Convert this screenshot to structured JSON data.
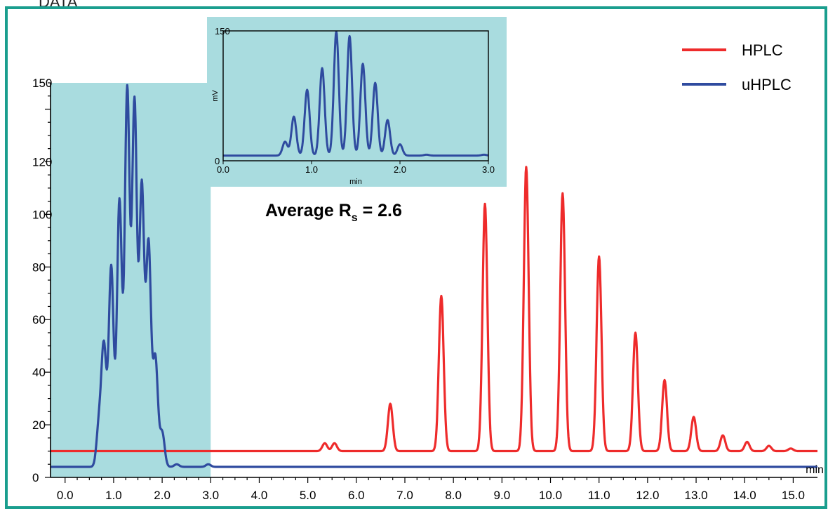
{
  "header": {
    "title": "DATA"
  },
  "colors": {
    "frame": "#1a9e8e",
    "highlight": "#a9dcdf",
    "hplc": "#ee2b2b",
    "uhplc": "#2f4b9f"
  },
  "chart_data": [
    {
      "type": "line",
      "xlabel": "min",
      "ylabel": "",
      "xlim": [
        -0.3,
        15.5
      ],
      "ylim": [
        0,
        150
      ],
      "x_ticks": [
        "0.0",
        "1.0",
        "2.0",
        "3.0",
        "4.0",
        "5.0",
        "6.0",
        "7.0",
        "8.0",
        "9.0",
        "10.0",
        "11.0",
        "12.0",
        "13.0",
        "14.0",
        "15.0"
      ],
      "y_ticks": [
        "0",
        "20",
        "40",
        "60",
        "80",
        "100",
        "120",
        "150"
      ],
      "highlight_region": [
        -0.3,
        3.0
      ],
      "legend": {
        "position": "top-right",
        "entries": [
          "HPLC",
          "uHPLC"
        ]
      },
      "annotation": {
        "prefix": "Average R",
        "subscript": "s",
        "suffix": " = 2.6"
      },
      "series": [
        {
          "name": "HPLC",
          "color": "#ee2b2b",
          "baseline": 10,
          "peaks": [
            [
              5.35,
              3
            ],
            [
              5.55,
              3
            ],
            [
              6.7,
              18
            ],
            [
              7.75,
              59
            ],
            [
              8.65,
              94
            ],
            [
              9.5,
              108
            ],
            [
              10.25,
              98
            ],
            [
              11.0,
              74
            ],
            [
              11.75,
              45
            ],
            [
              12.35,
              27
            ],
            [
              12.95,
              13
            ],
            [
              13.55,
              6
            ],
            [
              14.05,
              3.5
            ],
            [
              14.5,
              2
            ],
            [
              14.95,
              1
            ]
          ]
        },
        {
          "name": "uHPLC",
          "color": "#2f4b9f",
          "baseline": 4,
          "peaks": [
            [
              0.7,
              16
            ],
            [
              0.8,
              45
            ],
            [
              0.95,
              76
            ],
            [
              1.12,
              101
            ],
            [
              1.28,
              143
            ],
            [
              1.43,
              138
            ],
            [
              1.58,
              106
            ],
            [
              1.72,
              84
            ],
            [
              1.86,
              41
            ],
            [
              2.0,
              13
            ],
            [
              2.3,
              1
            ],
            [
              2.95,
              1
            ]
          ]
        }
      ]
    },
    {
      "type": "line",
      "xlabel": "min",
      "ylabel": "mV",
      "xlim": [
        0,
        3.0
      ],
      "ylim": [
        0,
        150
      ],
      "x_ticks": [
        "0.0",
        "1.0",
        "2.0",
        "3.0"
      ],
      "y_ticks": [
        "0",
        "150"
      ],
      "series": [
        {
          "name": "uHPLC",
          "color": "#2f4b9f",
          "baseline": 6,
          "peaks": [
            [
              0.7,
              16
            ],
            [
              0.8,
              45
            ],
            [
              0.95,
              76
            ],
            [
              1.12,
              101
            ],
            [
              1.28,
              143
            ],
            [
              1.43,
              138
            ],
            [
              1.58,
              106
            ],
            [
              1.72,
              84
            ],
            [
              1.86,
              41
            ],
            [
              2.0,
              13
            ],
            [
              2.3,
              1
            ],
            [
              2.95,
              1
            ]
          ]
        }
      ]
    }
  ]
}
